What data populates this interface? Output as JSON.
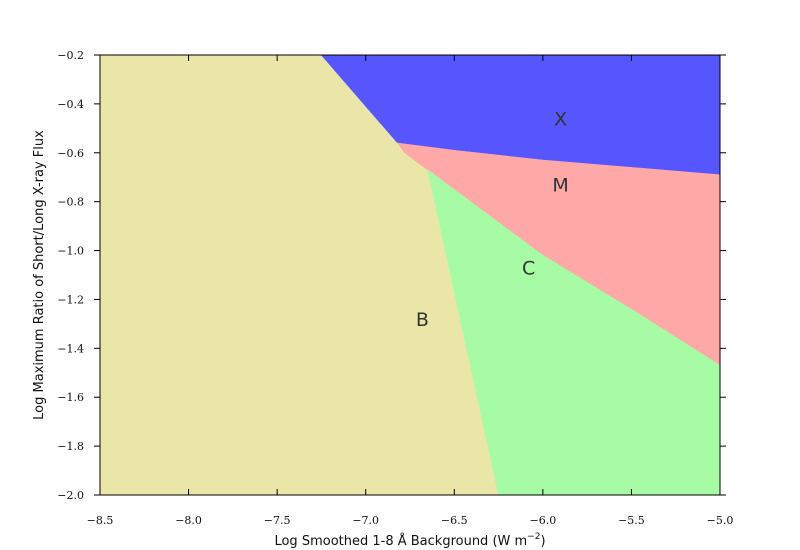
{
  "chart_data": {
    "type": "area",
    "title": "",
    "xlabel_prefix": "Log Smoothed 1-8 Å Background (W m",
    "xlabel_sup": "−2",
    "xlabel_suffix": ")",
    "ylabel": "Log Maximum Ratio of Short/Long X-ray Flux",
    "xlim": [
      -8.5,
      -5.0
    ],
    "ylim": [
      -2.0,
      -0.2
    ],
    "xticks": [
      -8.5,
      -8.0,
      -7.5,
      -7.0,
      -6.5,
      -6.0,
      -5.5,
      -5.0
    ],
    "xtick_labels": [
      "−8.5",
      "−8.0",
      "−7.5",
      "−7.0",
      "−6.5",
      "−6.0",
      "−5.5",
      "−5.0"
    ],
    "yticks": [
      -2.0,
      -1.8,
      -1.6,
      -1.4,
      -1.2,
      -1.0,
      -0.8,
      -0.6,
      -0.4,
      -0.2
    ],
    "ytick_labels": [
      "−2.0",
      "−1.8",
      "−1.6",
      "−1.4",
      "−1.2",
      "−1.0",
      "−0.8",
      "−0.6",
      "−0.4",
      "−0.2"
    ],
    "grid": false,
    "boundaries": {
      "B_boundary": [
        [
          -7.25,
          -0.2
        ],
        [
          -6.82,
          -0.56
        ],
        [
          -6.78,
          -0.6
        ],
        [
          -6.65,
          -0.67
        ],
        [
          -6.25,
          -2.0
        ]
      ],
      "X_M_boundary": [
        [
          -6.82,
          -0.56
        ],
        [
          -6.5,
          -0.59
        ],
        [
          -6.0,
          -0.63
        ],
        [
          -5.5,
          -0.66
        ],
        [
          -5.0,
          -0.69
        ]
      ],
      "M_C_boundary": [
        [
          -6.65,
          -0.67
        ],
        [
          -6.0,
          -1.02
        ],
        [
          -5.5,
          -1.24
        ],
        [
          -5.0,
          -1.47
        ]
      ]
    },
    "regions": [
      {
        "name": "B",
        "color": "#eae6a8",
        "label_at": [
          -6.68,
          -1.28
        ]
      },
      {
        "name": "C",
        "color": "#a8fba5",
        "label_at": [
          -6.08,
          -1.07
        ]
      },
      {
        "name": "M",
        "color": "#fea8a8",
        "label_at": [
          -5.9,
          -0.73
        ]
      },
      {
        "name": "X",
        "color": "#5655fe",
        "label_at": [
          -5.9,
          -0.46
        ]
      }
    ]
  }
}
